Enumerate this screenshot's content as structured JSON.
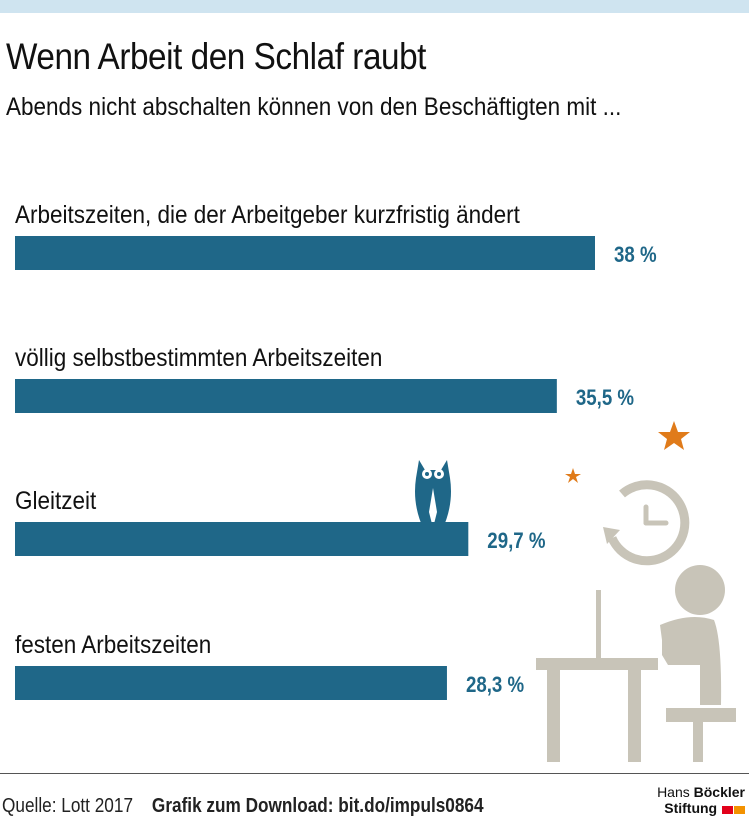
{
  "title": "Wenn Arbeit den Schlaf raubt",
  "subtitle": "Abends nicht abschalten können von den Beschäftigten mit ...",
  "chart_data": {
    "type": "bar",
    "orientation": "horizontal",
    "categories": [
      "Arbeitszeiten, die der Arbeitgeber kurzfristig ändert",
      "völlig selbstbestimmten Arbeitszeiten",
      "Gleitzeit",
      "festen Arbeitszeiten"
    ],
    "values": [
      38,
      35.5,
      29.7,
      28.3
    ],
    "value_labels": [
      "38 %",
      "35,5 %",
      "29,7 %",
      "28,3 %"
    ],
    "unit": "%",
    "bar_color": "#1f6788",
    "label_color": "#1f6788"
  },
  "footer": {
    "source": "Quelle: Lott 2017",
    "download": "Grafik zum Download: bit.do/impuls0864"
  },
  "logo": {
    "line1_regular": "Hans ",
    "line1_bold": "Böckler",
    "line2_bold": "Stiftung",
    "colors": [
      "#e2001a",
      "#f39200"
    ]
  },
  "illustration": {
    "icons": [
      "owl-icon",
      "star-icon",
      "clock-icon",
      "person-at-desk-icon"
    ],
    "accent_color": "#e07b1a",
    "figure_color": "#c8c4b8"
  }
}
